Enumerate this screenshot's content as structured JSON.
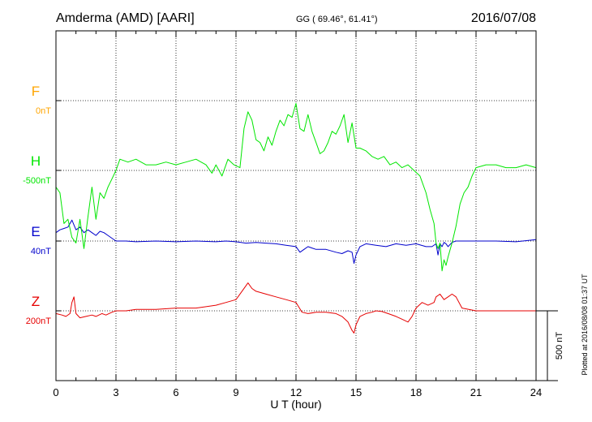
{
  "header": {
    "station": "Amderma (AMD)  [AARI]",
    "coords": "GG ( 69.46°,  61.41°)",
    "date": "2016/07/08"
  },
  "plotted_note": "Plotted at 2016/08/08 01:37 UT",
  "scale_label": "500 nT",
  "colors": {
    "F": "#ffa500",
    "H": "#00e600",
    "E": "#0000cc",
    "Z": "#e60000",
    "axis": "#000000",
    "grid": "#000000"
  },
  "chart_data": {
    "type": "line",
    "xlabel": "U T (hour)",
    "xlim": [
      0,
      24
    ],
    "xticks": [
      "0",
      "3",
      "6",
      "9",
      "12",
      "15",
      "18",
      "21",
      "24"
    ],
    "channels": [
      {
        "name": "F",
        "baseline": "0nT"
      },
      {
        "name": "H",
        "baseline": "-500nT"
      },
      {
        "name": "E",
        "baseline": "40nT"
      },
      {
        "name": "Z",
        "baseline": "200nT"
      }
    ],
    "units": "nT (deviation from baseline; 500 nT scale bar)",
    "series": [
      {
        "name": "H",
        "x": [
          0,
          0.2,
          0.4,
          0.6,
          0.8,
          1.0,
          1.2,
          1.4,
          1.6,
          1.8,
          2.0,
          2.2,
          2.4,
          2.6,
          2.8,
          3.0,
          3.2,
          3.6,
          4.0,
          4.5,
          5.0,
          5.5,
          6.0,
          6.5,
          7.0,
          7.5,
          7.8,
          8.0,
          8.3,
          8.6,
          8.9,
          9.2,
          9.4,
          9.6,
          9.8,
          10.0,
          10.2,
          10.4,
          10.6,
          10.8,
          11.0,
          11.2,
          11.4,
          11.6,
          11.8,
          12.0,
          12.2,
          12.4,
          12.6,
          12.8,
          13.0,
          13.2,
          13.4,
          13.6,
          13.8,
          14.0,
          14.2,
          14.4,
          14.6,
          14.8,
          15.0,
          15.2,
          15.5,
          15.8,
          16.1,
          16.4,
          16.7,
          17.0,
          17.3,
          17.6,
          17.9,
          18.2,
          18.5,
          18.7,
          18.9,
          19.0,
          19.1,
          19.2,
          19.3,
          19.4,
          19.5,
          19.6,
          19.8,
          20.0,
          20.2,
          20.4,
          20.6,
          20.8,
          21.0,
          21.5,
          22.0,
          22.5,
          23.0,
          23.5,
          24.0
        ],
        "y": [
          -120,
          -160,
          -380,
          -350,
          -480,
          -520,
          -350,
          -560,
          -330,
          -120,
          -350,
          -160,
          -200,
          -120,
          -60,
          0,
          80,
          60,
          80,
          40,
          40,
          60,
          40,
          60,
          80,
          40,
          -20,
          40,
          -40,
          80,
          40,
          20,
          300,
          420,
          360,
          220,
          200,
          140,
          240,
          180,
          280,
          360,
          320,
          400,
          380,
          480,
          300,
          280,
          400,
          280,
          200,
          120,
          140,
          200,
          280,
          260,
          320,
          400,
          200,
          340,
          160,
          160,
          140,
          100,
          80,
          100,
          40,
          60,
          20,
          40,
          0,
          -40,
          -160,
          -280,
          -380,
          -520,
          -560,
          -520,
          -720,
          -640,
          -680,
          -620,
          -520,
          -400,
          -240,
          -160,
          -120,
          -40,
          20,
          40,
          40,
          20,
          20,
          40,
          20
        ]
      },
      {
        "name": "E",
        "x": [
          0,
          0.2,
          0.4,
          0.6,
          0.8,
          1.0,
          1.2,
          1.4,
          1.6,
          1.8,
          2.0,
          2.2,
          2.4,
          2.6,
          2.8,
          3.0,
          3.5,
          4.0,
          5.0,
          6.0,
          7.0,
          8.0,
          8.5,
          9.0,
          9.5,
          10.0,
          10.5,
          11.0,
          11.5,
          12.0,
          12.2,
          12.4,
          12.6,
          12.8,
          13.0,
          13.5,
          14.0,
          14.3,
          14.6,
          14.8,
          14.9,
          15.0,
          15.2,
          15.5,
          16.0,
          16.5,
          17.0,
          17.5,
          18.0,
          18.5,
          18.8,
          19.0,
          19.1,
          19.2,
          19.3,
          19.4,
          19.5,
          19.6,
          19.8,
          20.0,
          21.0,
          22.0,
          23.0,
          24.0
        ],
        "y": [
          60,
          80,
          90,
          100,
          150,
          80,
          100,
          60,
          80,
          60,
          40,
          70,
          60,
          40,
          20,
          0,
          0,
          -5,
          0,
          -5,
          0,
          -5,
          0,
          -5,
          -15,
          -10,
          -15,
          -20,
          -30,
          -40,
          -80,
          -60,
          -40,
          -50,
          -60,
          -60,
          -80,
          -90,
          -70,
          -80,
          -160,
          -100,
          -40,
          -20,
          -30,
          -40,
          -20,
          -30,
          -20,
          -40,
          -40,
          -20,
          -100,
          -20,
          -40,
          -10,
          -20,
          -40,
          -10,
          0,
          0,
          0,
          -5,
          10
        ]
      },
      {
        "name": "Z",
        "x": [
          0,
          0.3,
          0.5,
          0.7,
          0.8,
          0.9,
          1.0,
          1.2,
          1.5,
          1.8,
          2.0,
          2.3,
          2.5,
          2.8,
          3.0,
          3.5,
          4.0,
          5.0,
          6.0,
          7.0,
          8.0,
          8.5,
          9.0,
          9.3,
          9.6,
          9.8,
          10.0,
          10.5,
          11.0,
          11.5,
          12.0,
          12.3,
          12.6,
          13.0,
          13.5,
          14.0,
          14.3,
          14.6,
          14.8,
          14.9,
          15.0,
          15.2,
          15.5,
          15.8,
          16.0,
          16.3,
          16.6,
          17.0,
          17.3,
          17.6,
          17.8,
          18.0,
          18.3,
          18.6,
          18.9,
          19.0,
          19.2,
          19.4,
          19.6,
          19.8,
          20.0,
          20.3,
          21.0,
          22.0,
          23.0,
          24.0
        ],
        "y": [
          -20,
          -30,
          -40,
          -20,
          60,
          100,
          -20,
          -50,
          -40,
          -30,
          -40,
          -20,
          -30,
          -10,
          0,
          0,
          10,
          10,
          20,
          20,
          40,
          60,
          80,
          140,
          200,
          160,
          140,
          120,
          100,
          80,
          60,
          -10,
          -20,
          -10,
          -10,
          -20,
          -40,
          -80,
          -140,
          -160,
          -100,
          -40,
          -20,
          -10,
          0,
          -5,
          -20,
          -40,
          -60,
          -80,
          -40,
          20,
          60,
          40,
          60,
          100,
          120,
          80,
          100,
          120,
          100,
          20,
          0,
          0,
          0,
          0
        ]
      }
    ]
  }
}
